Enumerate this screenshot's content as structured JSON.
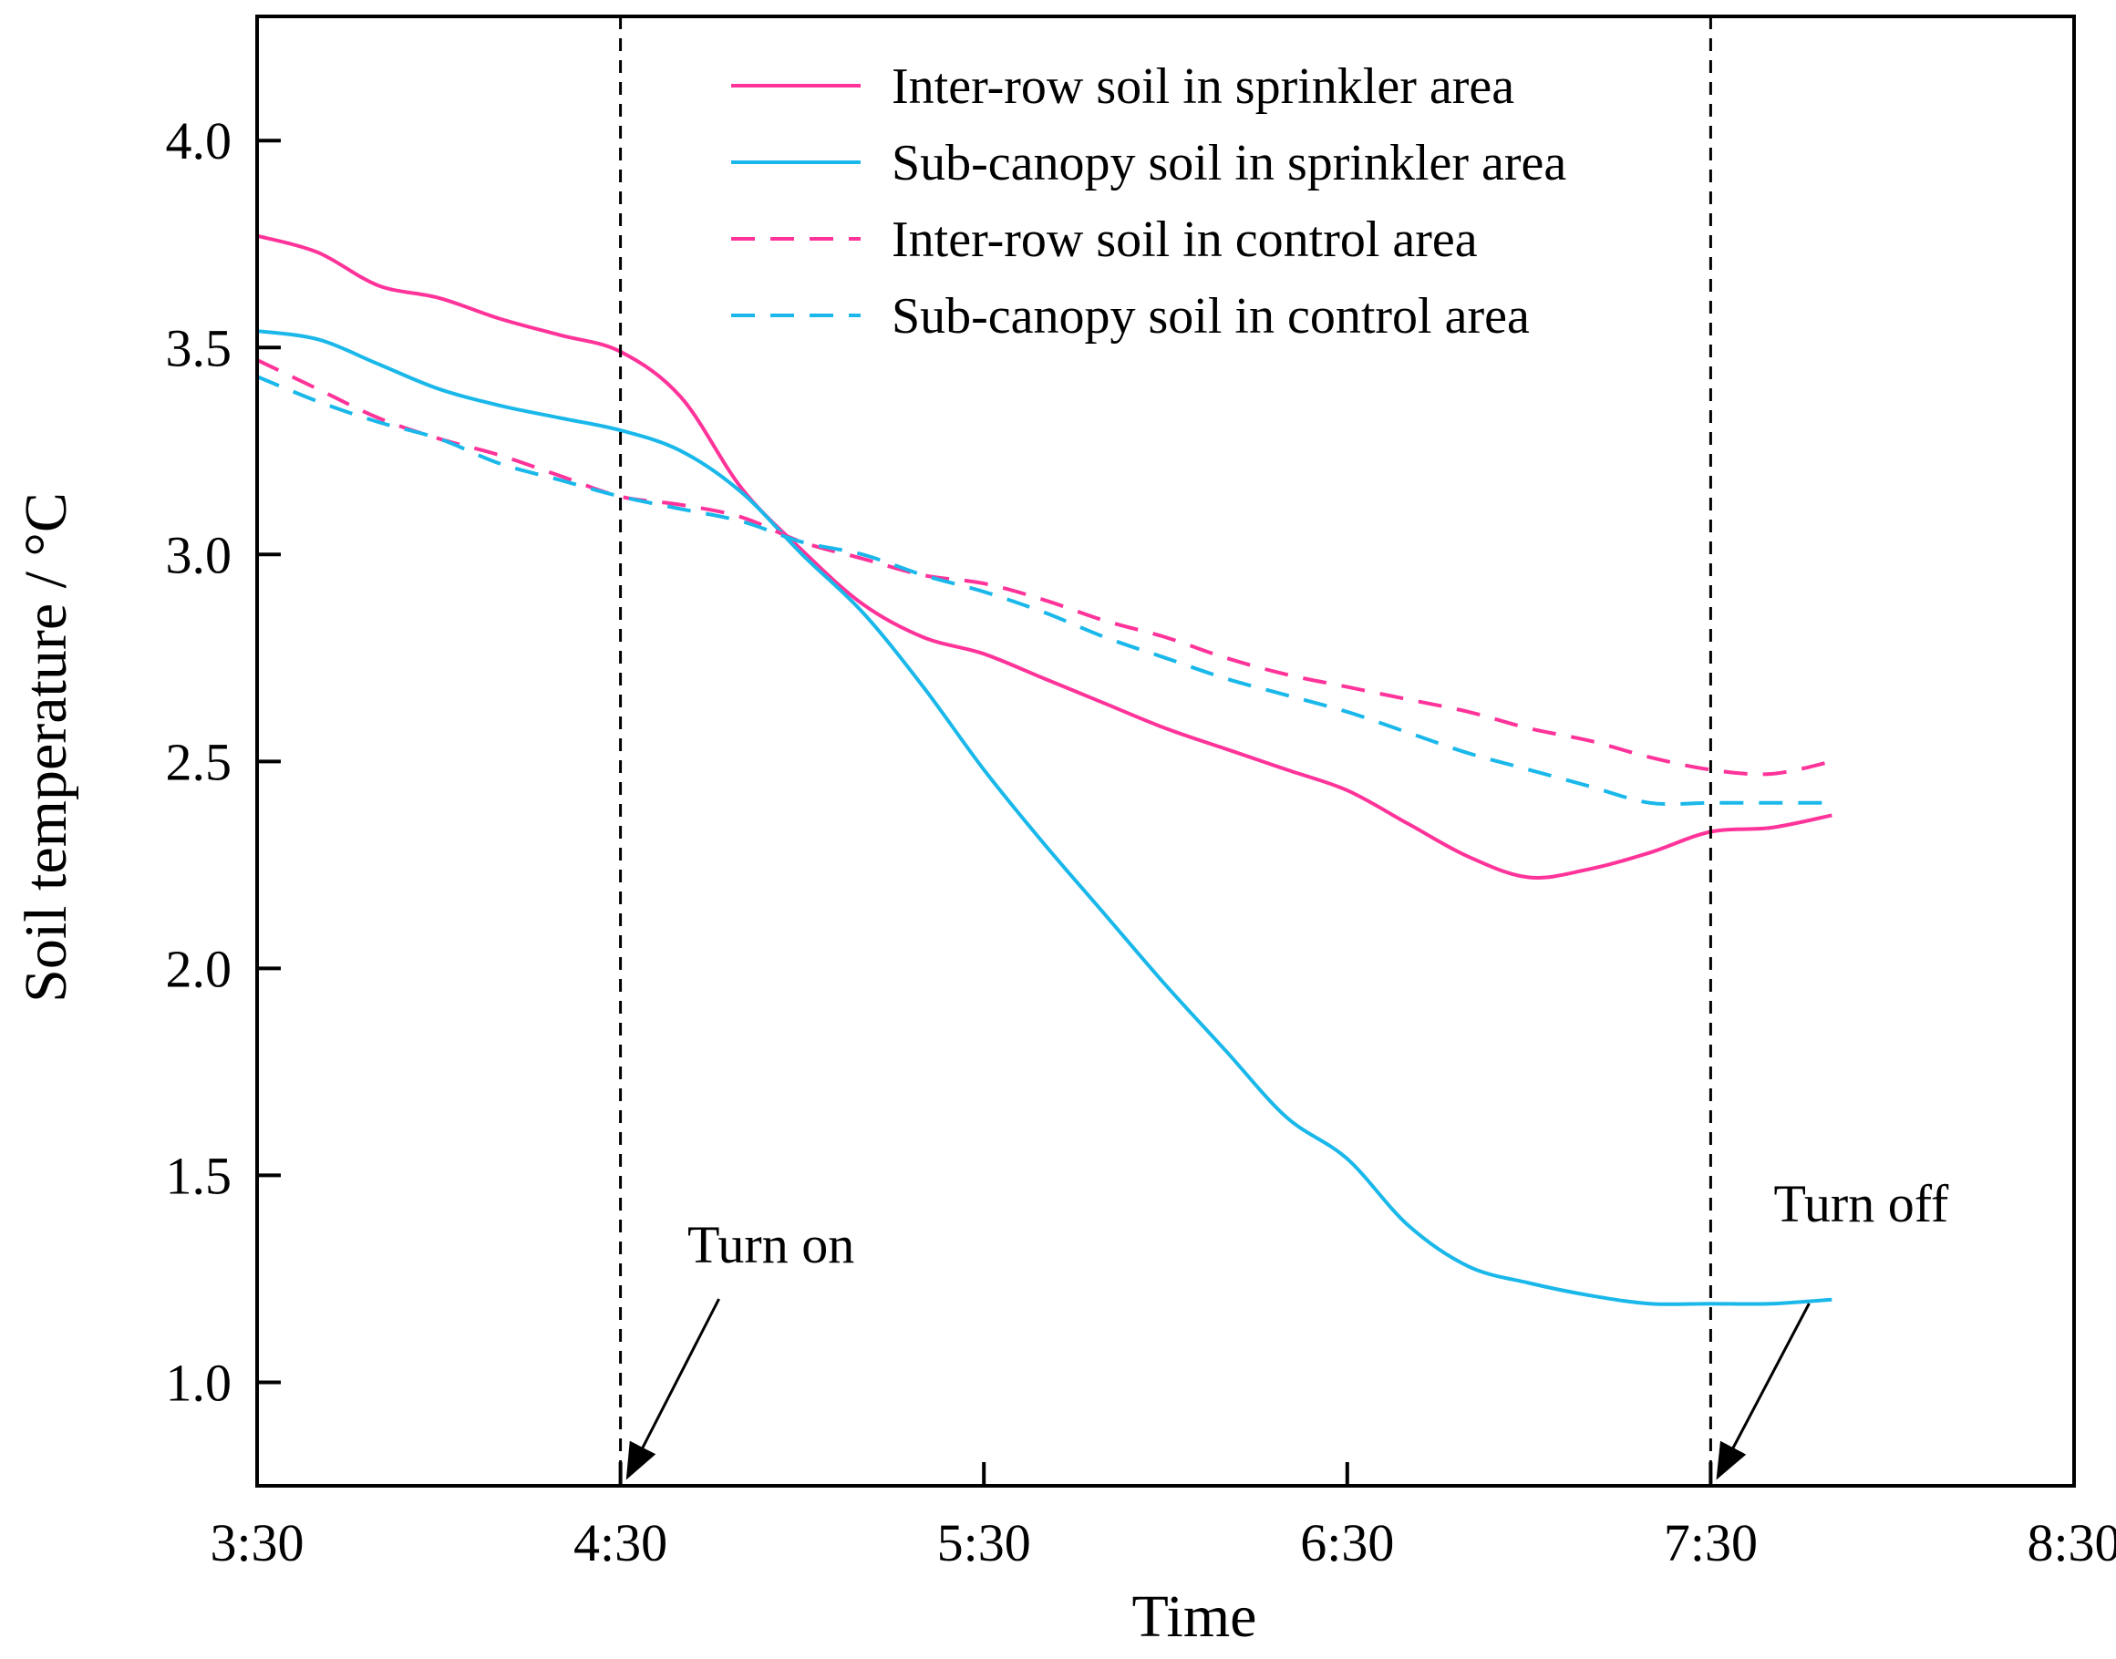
{
  "chart_data": {
    "type": "line",
    "xlabel": "Time",
    "ylabel": "Soil temperature / °C",
    "xlim": [
      "3:30",
      "8:30"
    ],
    "ylim": [
      0.75,
      4.3
    ],
    "x_ticks": [
      "3:30",
      "4:30",
      "5:30",
      "6:30",
      "7:30",
      "8:30"
    ],
    "y_ticks": [
      "1.0",
      "1.5",
      "2.0",
      "2.5",
      "3.0",
      "3.5",
      "4.0"
    ],
    "x": [
      "3:30",
      "3:40",
      "3:50",
      "4:00",
      "4:10",
      "4:20",
      "4:30",
      "4:40",
      "4:50",
      "5:00",
      "5:10",
      "5:20",
      "5:30",
      "5:40",
      "5:50",
      "6:00",
      "6:10",
      "6:20",
      "6:30",
      "6:40",
      "6:50",
      "7:00",
      "7:10",
      "7:20",
      "7:30",
      "7:40",
      "7:50"
    ],
    "series": [
      {
        "name": "Inter-row soil in sprinkler area",
        "color": "#ff3399",
        "dash": "solid",
        "values": [
          3.77,
          3.73,
          3.65,
          3.62,
          3.57,
          3.53,
          3.49,
          3.38,
          3.16,
          3.01,
          2.88,
          2.8,
          2.76,
          2.7,
          2.64,
          2.58,
          2.53,
          2.48,
          2.43,
          2.35,
          2.27,
          2.22,
          2.24,
          2.28,
          2.33,
          2.34,
          2.37
        ]
      },
      {
        "name": "Sub-canopy soil in sprinkler area",
        "color": "#1ab8ea",
        "dash": "solid",
        "values": [
          3.54,
          3.52,
          3.46,
          3.4,
          3.36,
          3.33,
          3.3,
          3.25,
          3.15,
          3.0,
          2.86,
          2.68,
          2.48,
          2.3,
          2.13,
          1.96,
          1.8,
          1.64,
          1.54,
          1.38,
          1.28,
          1.24,
          1.21,
          1.19,
          1.19,
          1.19,
          1.2
        ]
      },
      {
        "name": "Inter-row soil in control area",
        "color": "#ff3399",
        "dash": "dashed",
        "values": [
          3.47,
          3.4,
          3.33,
          3.28,
          3.24,
          3.19,
          3.14,
          3.12,
          3.09,
          3.03,
          2.99,
          2.95,
          2.93,
          2.89,
          2.84,
          2.8,
          2.75,
          2.71,
          2.68,
          2.65,
          2.62,
          2.58,
          2.55,
          2.51,
          2.48,
          2.47,
          2.5
        ]
      },
      {
        "name": "Sub-canopy soil in control area",
        "color": "#1ab8ea",
        "dash": "dashed",
        "values": [
          3.43,
          3.37,
          3.32,
          3.28,
          3.22,
          3.18,
          3.14,
          3.11,
          3.08,
          3.03,
          3.0,
          2.95,
          2.91,
          2.86,
          2.8,
          2.75,
          2.7,
          2.66,
          2.62,
          2.57,
          2.52,
          2.48,
          2.44,
          2.4,
          2.4,
          2.4,
          2.4
        ]
      }
    ],
    "vlines": [
      "4:30",
      "7:30"
    ],
    "annotations": [
      {
        "text": "Turn on",
        "target_x": "4:30"
      },
      {
        "text": "Turn off",
        "target_x": "7:30"
      }
    ],
    "legend_position": "top-center",
    "grid": false
  }
}
